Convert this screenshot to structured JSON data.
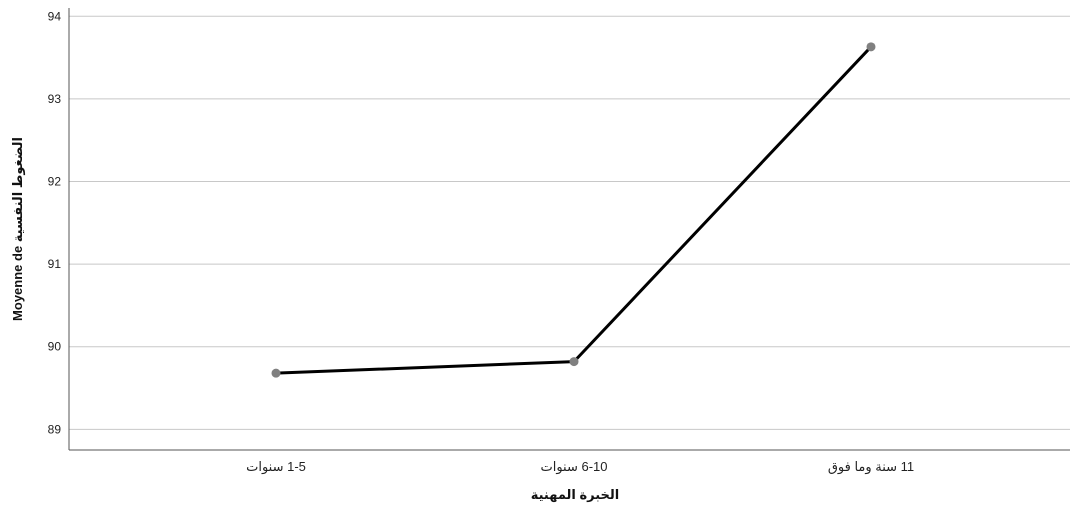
{
  "chart_data": {
    "type": "line",
    "categories": [
      "1-5 سنوات",
      "6-10 سنوات",
      "11 سنة وما فوق"
    ],
    "values": [
      89.68,
      89.82,
      93.63
    ],
    "xlabel": "الخبرة المهنية",
    "ylabel": "Moyenne de الضغوط النفسية",
    "ylim": [
      88.75,
      94.1
    ],
    "yticks": [
      89,
      90,
      91,
      92,
      93,
      94
    ],
    "grid": true,
    "line_color": "#000000",
    "marker_color": "#808080",
    "grid_color": "#c8c8c8"
  }
}
